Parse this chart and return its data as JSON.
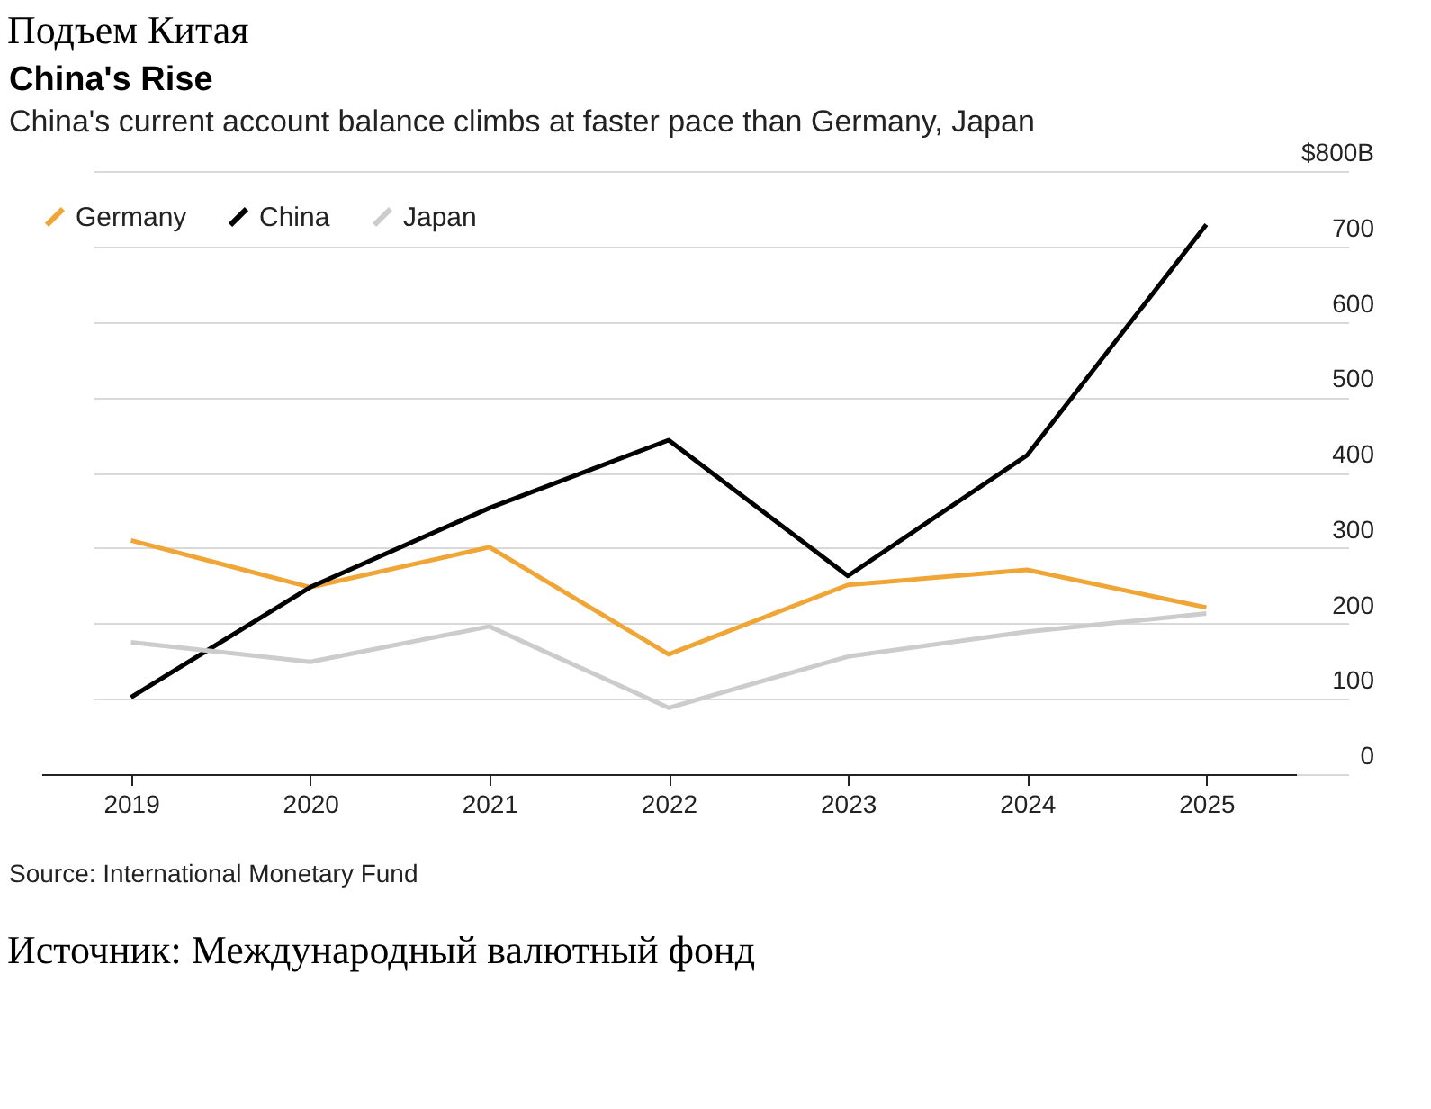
{
  "chart_data": {
    "type": "line",
    "title": "China's Rise",
    "subtitle": "China's current account balance climbs at faster pace than Germany, Japan",
    "annotations": [
      "Подъем Китая",
      "Source: International Monetary Fund",
      "Источник: Международный валютный фонд"
    ],
    "categories": [
      "2019",
      "2020",
      "2021",
      "2022",
      "2023",
      "2024",
      "2025"
    ],
    "series": [
      {
        "name": "Germany",
        "color": "#f0a637",
        "values": [
          310,
          248,
          301,
          159,
          251,
          271,
          221
        ]
      },
      {
        "name": "China",
        "color": "#000000",
        "values": [
          102,
          248,
          353,
          443,
          263,
          423,
          729
        ]
      },
      {
        "name": "Japan",
        "color": "#cccccc",
        "values": [
          175,
          149,
          196,
          88,
          156,
          189,
          213
        ]
      }
    ],
    "ylim": [
      0,
      800
    ],
    "yticks": [
      0,
      100,
      200,
      300,
      400,
      500,
      600,
      700,
      {
        "value": 800,
        "label": "$800B"
      }
    ],
    "grid": "y",
    "legend": "top left"
  }
}
